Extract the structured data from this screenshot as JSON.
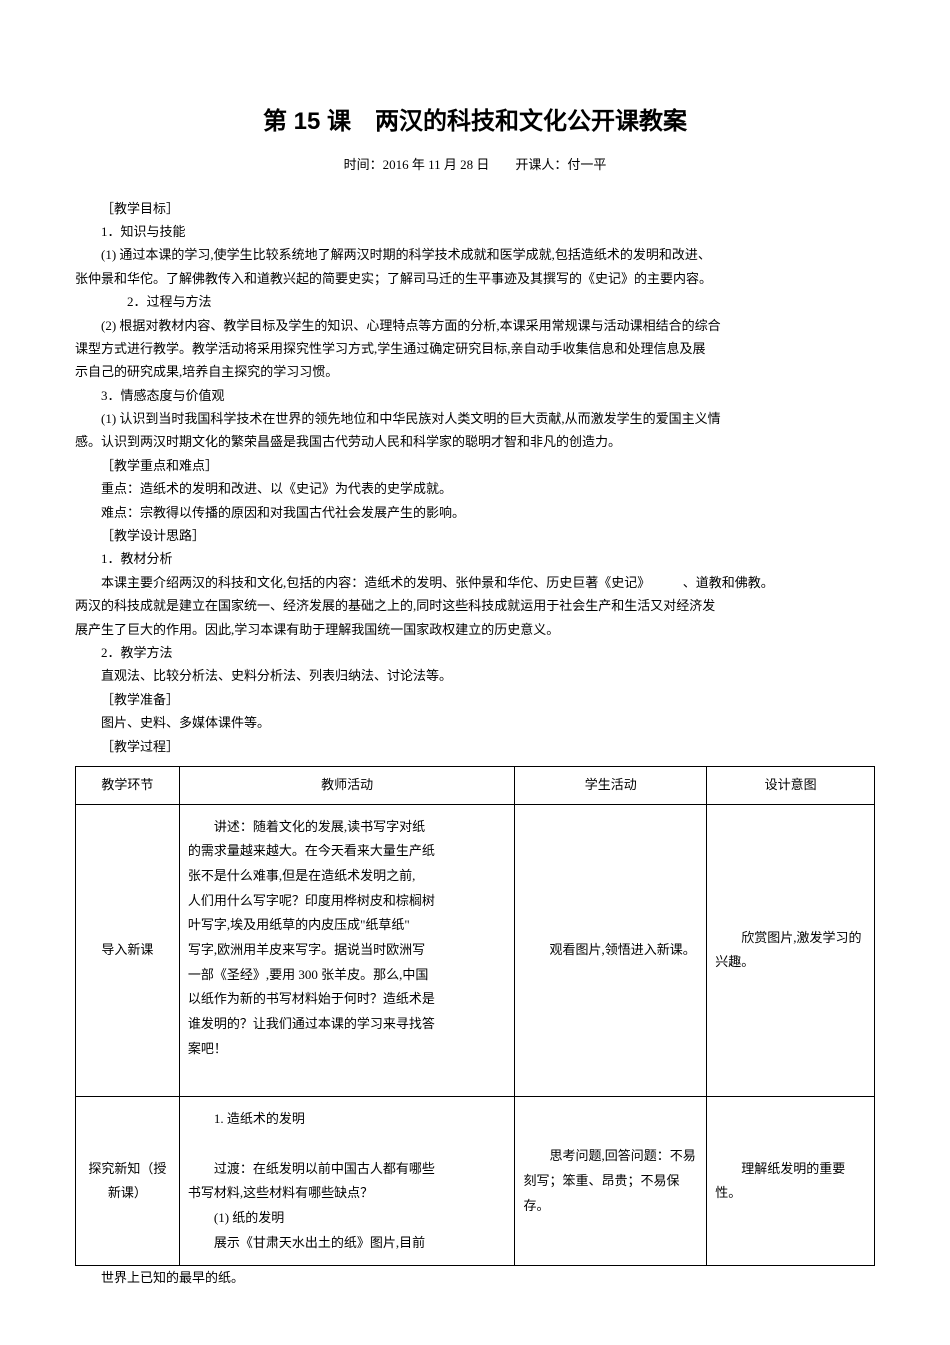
{
  "title": "第 15 课　两汉的科技和文化公开课教案",
  "subtitle": "时间：2016 年 11 月 28 日　　开课人：付一平",
  "labels": {
    "objectives": "［教学目标］",
    "obj1_title": "1．知识与技能",
    "obj1_p1": "(1) 通过本课的学习,使学生比较系统地了解两汉时期的科学技术成就和医学成就,包括造纸术的发明和改进、",
    "obj1_p1b": "张仲景和华佗。了解佛教传入和道教兴起的简要史实；了解司马迁的生平事迹及其撰写的《史记》的主要内容。",
    "obj2_title": "2．过程与方法",
    "obj2_p1": "(2) 根据对教材内容、教学目标及学生的知识、心理特点等方面的分析,本课采用常规课与活动课相结合的综合",
    "obj2_p1b": "课型方式进行教学。教学活动将采用探究性学习方式,学生通过确定研究目标,亲自动手收集信息和处理信息及展",
    "obj2_p1c": "示自己的研究成果,培养自主探究的学习习惯。",
    "obj3_title": "3．情感态度与价值观",
    "obj3_p1": "(1) 认识到当时我国科学技术在世界的领先地位和中华民族对人类文明的巨大贡献,从而激发学生的爱国主义情",
    "obj3_p1b": "感。认识到两汉时期文化的繁荣昌盛是我国古代劳动人民和科学家的聪明才智和非凡的创造力。",
    "focus": "［教学重点和难点］",
    "focus_p1": "重点：造纸术的发明和改进、以《史记》为代表的史学成就。",
    "focus_p2": "难点：宗教得以传播的原因和对我国古代社会发展产生的影响。",
    "design": "［教学设计思路］",
    "design1_title": "1．教材分析",
    "design1_p1": "本课主要介绍两汉的科技和文化,包括的内容：造纸术的发明、张仲景和华佗、历史巨著《史记》　　　、道教和佛教。",
    "design1_p1b": "两汉的科技成就是建立在国家统一、经济发展的基础之上的,同时这些科技成就运用于社会生产和生活又对经济发",
    "design1_p1c": "展产生了巨大的作用。因此,学习本课有助于理解我国统一国家政权建立的历史意义。",
    "design2_title": "2．教学方法",
    "design2_p1": "直观法、比较分析法、史料分析法、列表归纳法、讨论法等。",
    "prep": "［教学准备］",
    "prep_p1": "图片、史料、多媒体课件等。",
    "process": "［教学过程］"
  },
  "table": {
    "headers": [
      "教学环节",
      "教师活动",
      "学生活动",
      "设计意图"
    ],
    "row1": {
      "c1": "导入新课",
      "c2_lines": [
        "　　讲述：随着文化的发展,读书写字对纸",
        "的需求量越来越大。在今天看来大量生产纸",
        "张不是什么难事,但是在造纸术发明之前,",
        "人们用什么写字呢？印度用桦树皮和棕榈树",
        "叶写字,埃及用纸草的内皮压成\"纸草纸\"",
        "写字,欧洲用羊皮来写字。据说当时欧洲写",
        "一部《圣经》,要用 300 张羊皮。那么,中国",
        "以纸作为新的书写材料始于何时？造纸术是",
        "谁发明的？让我们通过本课的学习来寻找答",
        "案吧！"
      ],
      "c3": "　　观看图片,领悟进入新课。",
      "c4": "　　欣赏图片,激发学习的兴趣。"
    },
    "row2": {
      "c1": "探究新知（授新课）",
      "c2_lines": [
        "　　1. 造纸术的发明",
        "",
        "　　过渡：在纸发明以前中国古人都有哪些",
        "书写材料,这些材料有哪些缺点？",
        "　　(1) 纸的发明",
        "　　展示《甘肃天水出土的纸》图片,目前"
      ],
      "c3": "　　思考问题,回答问题：不易刻写；笨重、昂贵；不易保存。",
      "c4": "　　理解纸发明的重要性。"
    },
    "footnote": "世界上已知的最早的纸。"
  }
}
